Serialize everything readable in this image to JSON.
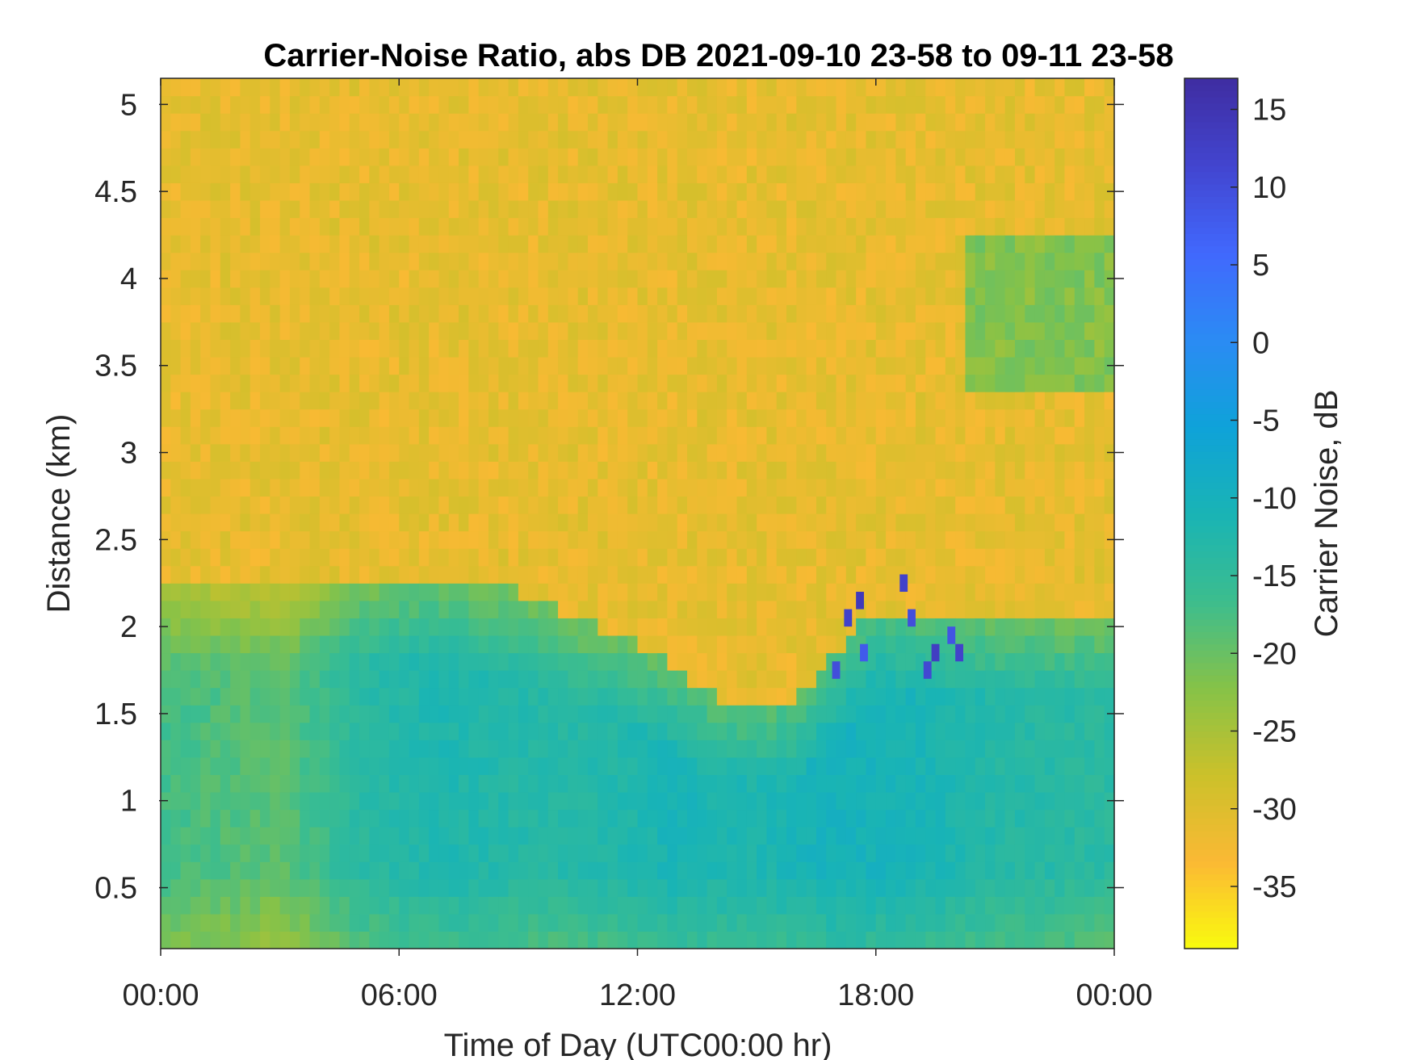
{
  "chart_data": {
    "type": "heatmap",
    "title": "Carrier-Noise Ratio, abs DB 2021-09-10 23-58 to 09-11 23-58",
    "xlabel": "Time of Day (UTC00:00 hr)",
    "ylabel": "Distance (km)",
    "colorbar_label": "Carrier Noise, dB",
    "colormap": "parula",
    "colormap_reversed": true,
    "colormap_stops": [
      "#f9fb0e",
      "#fbb934",
      "#cbc12a",
      "#86c248",
      "#3cbd8e",
      "#19b4b5",
      "#0fa2d9",
      "#2b8bf4",
      "#4168fd",
      "#4245cf",
      "#3f2da1"
    ],
    "x_unit": "hours",
    "xlim": [
      0,
      24
    ],
    "xticks": [
      0,
      6,
      12,
      18,
      24
    ],
    "xtick_labels": [
      "00:00",
      "06:00",
      "12:00",
      "18:00",
      "00:00"
    ],
    "ylim": [
      0.15,
      5.15
    ],
    "yticks": [
      0.5,
      1,
      1.5,
      2,
      2.5,
      3,
      3.5,
      4,
      4.5,
      5
    ],
    "ytick_labels": [
      "0.5",
      "1",
      "1.5",
      "2",
      "2.5",
      "3",
      "3.5",
      "4",
      "4.5",
      "5"
    ],
    "clim": [
      -39,
      17
    ],
    "cticks": [
      15,
      10,
      5,
      0,
      -5,
      -10,
      -15,
      -20,
      -25,
      -30,
      -35
    ],
    "ctick_labels": [
      "15",
      "10",
      "5",
      "0",
      "-5",
      "-10",
      "-15",
      "-20",
      "-25",
      "-30",
      "-35"
    ],
    "distance_resolution_km": 0.1,
    "time_resolution_hr": 0.25,
    "background_level_db": -31,
    "boundary_layer_top_km": {
      "x": [
        0,
        3,
        6,
        9,
        12,
        14,
        16,
        18,
        20,
        22,
        24
      ],
      "y": [
        2.2,
        2.25,
        2.3,
        2.2,
        1.9,
        1.6,
        1.6,
        2.1,
        2.1,
        2.1,
        2.1
      ]
    },
    "boundary_layer_value_db": {
      "x": [
        0,
        3,
        5,
        7,
        9,
        11,
        13,
        15,
        17,
        19,
        21,
        24
      ],
      "y": [
        -17,
        -19,
        -14,
        -12,
        -13,
        -13,
        -11,
        -12,
        -10,
        -11,
        -13,
        -14
      ]
    },
    "upper_cloud_layer": {
      "x_range": [
        20.2,
        24
      ],
      "y_range": [
        3.35,
        4.3
      ],
      "value_db": -22
    },
    "high_return_cells": [
      {
        "x": 16.9,
        "y": 1.7,
        "value_db": 10
      },
      {
        "x": 17.2,
        "y": 2.0,
        "value_db": 12
      },
      {
        "x": 17.5,
        "y": 2.1,
        "value_db": 14
      },
      {
        "x": 17.6,
        "y": 1.8,
        "value_db": 8
      },
      {
        "x": 18.6,
        "y": 2.2,
        "value_db": 12
      },
      {
        "x": 18.8,
        "y": 2.0,
        "value_db": 10
      },
      {
        "x": 19.2,
        "y": 1.7,
        "value_db": 11
      },
      {
        "x": 19.4,
        "y": 1.8,
        "value_db": 13
      },
      {
        "x": 19.8,
        "y": 1.9,
        "value_db": 9
      },
      {
        "x": 20.0,
        "y": 1.8,
        "value_db": 12
      }
    ]
  }
}
